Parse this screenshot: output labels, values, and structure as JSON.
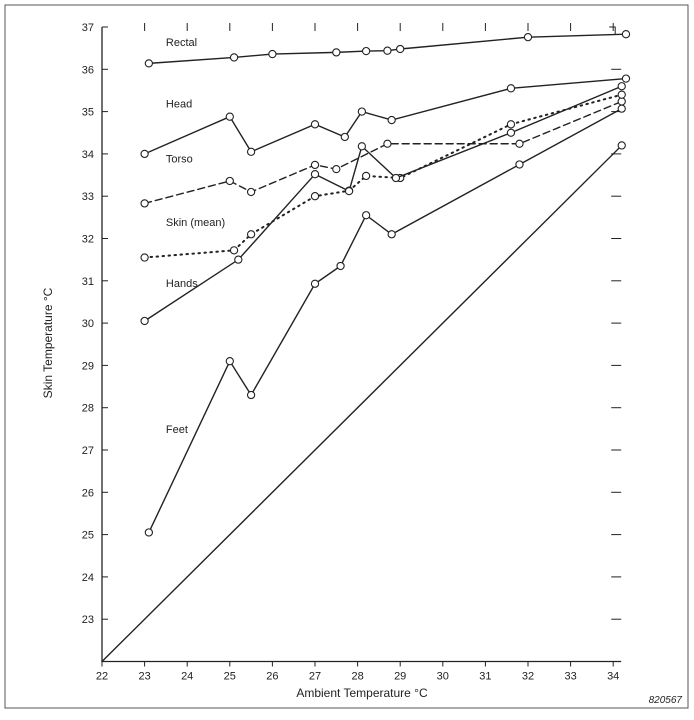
{
  "chart_data": {
    "type": "line",
    "title": "",
    "xlabel": "Ambient Temperature °C",
    "ylabel": "Skin Temperature °C",
    "xlim": [
      22,
      34
    ],
    "ylim": [
      22,
      37
    ],
    "x_ticks": [
      22,
      23,
      24,
      25,
      26,
      27,
      28,
      29,
      30,
      31,
      32,
      33,
      34
    ],
    "y_ticks": [
      23,
      24,
      25,
      26,
      27,
      28,
      29,
      30,
      31,
      32,
      33,
      34,
      35,
      36,
      37
    ],
    "grid": false,
    "legend": "inline labels",
    "figure_id": "820567",
    "series": [
      {
        "name": "Rectal",
        "style": "solid",
        "label_at": [
          23.5,
          36.55
        ],
        "x": [
          23.1,
          25.1,
          26.0,
          27.5,
          28.2,
          28.7,
          29.0,
          32.0,
          34.3
        ],
        "y": [
          36.14,
          36.28,
          36.36,
          36.4,
          36.43,
          36.44,
          36.48,
          36.76,
          36.83
        ]
      },
      {
        "name": "Head",
        "style": "solid",
        "label_at": [
          23.5,
          35.1
        ],
        "x": [
          23.0,
          25.0,
          25.5,
          27.0,
          27.7,
          28.1,
          28.8,
          31.6,
          34.3
        ],
        "y": [
          34.0,
          34.88,
          34.05,
          34.7,
          34.4,
          35.0,
          34.8,
          35.55,
          35.78
        ]
      },
      {
        "name": "Torso",
        "style": "dashed",
        "label_at": [
          23.5,
          33.8
        ],
        "x": [
          23.0,
          25.0,
          25.5,
          27.0,
          27.5,
          28.7,
          31.8,
          34.2
        ],
        "y": [
          32.83,
          33.36,
          33.1,
          33.74,
          33.64,
          34.24,
          34.24,
          35.24
        ]
      },
      {
        "name": "Skin (mean)",
        "style": "dotted",
        "label_at": [
          23.5,
          32.3
        ],
        "x": [
          23.0,
          25.1,
          25.5,
          27.0,
          27.8,
          28.2,
          29.0,
          31.6,
          34.2
        ],
        "y": [
          31.55,
          31.72,
          32.1,
          33.0,
          33.13,
          33.48,
          33.43,
          34.7,
          35.4
        ]
      },
      {
        "name": "Hands",
        "style": "solid",
        "label_at": [
          23.5,
          30.85
        ],
        "x": [
          23.0,
          25.2,
          27.0,
          27.8,
          28.1,
          28.9,
          31.6,
          34.2
        ],
        "y": [
          30.05,
          31.5,
          33.52,
          33.12,
          34.18,
          33.43,
          34.5,
          35.6
        ]
      },
      {
        "name": "Feet",
        "style": "solid",
        "label_at": [
          23.5,
          27.4
        ],
        "x": [
          23.1,
          25.0,
          25.5,
          27.0,
          27.6,
          28.2,
          28.8,
          31.8,
          34.2
        ],
        "y": [
          25.05,
          29.1,
          28.3,
          30.93,
          31.35,
          32.55,
          32.1,
          33.75,
          35.07
        ]
      },
      {
        "style": "solid",
        "markers": "end",
        "x": [
          22.0,
          34.2
        ],
        "y": [
          22.0,
          34.2
        ]
      }
    ]
  }
}
